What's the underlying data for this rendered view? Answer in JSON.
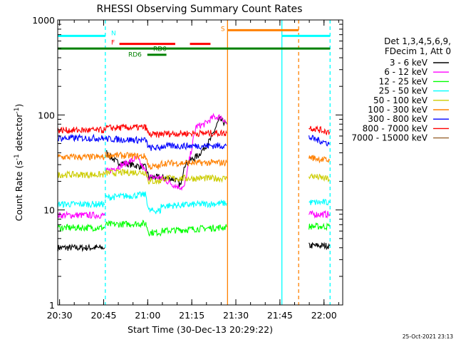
{
  "chart_data": {
    "type": "line",
    "title": "RHESSI Observing Summary Count Rates",
    "xlabel": "Start Time (30-Dec-13 20:29:22)",
    "ylabel_main": "Count Rate (s",
    "ylabel_sup1": "-1",
    "ylabel_mid": " detector",
    "ylabel_sup2": "-1",
    "ylabel_end": ")",
    "x_unit": "minutes since 20:29:22",
    "xlim": [
      0,
      97
    ],
    "ylim": [
      1,
      1000
    ],
    "yscale": "log",
    "x_ticks": [
      {
        "x": 0.63,
        "label": "20:30"
      },
      {
        "x": 15.63,
        "label": "20:45"
      },
      {
        "x": 30.63,
        "label": "21:00"
      },
      {
        "x": 45.63,
        "label": "21:15"
      },
      {
        "x": 60.63,
        "label": "21:30"
      },
      {
        "x": 75.63,
        "label": "21:45"
      },
      {
        "x": 90.63,
        "label": "22:00"
      }
    ],
    "y_ticks": [
      {
        "y": 1,
        "label": "1"
      },
      {
        "y": 10,
        "label": "10"
      },
      {
        "y": 100,
        "label": "100"
      },
      {
        "y": 1000,
        "label": "1000"
      }
    ],
    "legend_header": [
      "Det 1,3,4,5,6,9,",
      "FDecim 1, Att 0"
    ],
    "legend_placement": "right",
    "timestamp": "25-Oct-2021 23:13",
    "series": [
      {
        "name": "3 - 6 keV",
        "color": "#000000",
        "segments": [
          {
            "x": [
              0.1,
              16.0
            ],
            "y": [
              4.0,
              4.0
            ]
          },
          {
            "x": [
              16.5,
              20,
              25,
              30,
              31,
              35,
              40,
              42,
              43,
              48,
              52,
              55,
              57.5
            ],
            "y": [
              40,
              32,
              30,
              28,
              22,
              22,
              21,
              18,
              30,
              38,
              55,
              90,
              80
            ]
          },
          {
            "x": [
              85.5,
              92.5
            ],
            "y": [
              4.2,
              4.2
            ]
          }
        ]
      },
      {
        "name": "6 - 12 keV",
        "color": "#ff00ff",
        "segments": [
          {
            "x": [
              0.1,
              16.0
            ],
            "y": [
              8.8,
              8.8
            ]
          },
          {
            "x": [
              16.2,
              20,
              27,
              30,
              31,
              35,
              40,
              43,
              47,
              50,
              53,
              56,
              57.5
            ],
            "y": [
              25,
              28,
              35,
              25,
              22,
              22,
              18,
              17,
              75,
              80,
              95,
              95,
              80
            ]
          },
          {
            "x": [
              85.5,
              92.5
            ],
            "y": [
              9.0,
              9.0
            ]
          }
        ]
      },
      {
        "name": "12 - 25 keV",
        "color": "#00ff00",
        "segments": [
          {
            "x": [
              0.1,
              16.0
            ],
            "y": [
              6.5,
              6.5
            ]
          },
          {
            "x": [
              16.2,
              30,
              31,
              35,
              35.2,
              57.5
            ],
            "y": [
              7.0,
              7.2,
              5.8,
              5.8,
              6.0,
              6.6
            ]
          },
          {
            "x": [
              85.5,
              92.5
            ],
            "y": [
              6.7,
              6.7
            ]
          }
        ]
      },
      {
        "name": "25 - 50 keV",
        "color": "#00ffff",
        "segments": [
          {
            "x": [
              0.1,
              16.0
            ],
            "y": [
              11.5,
              11.5
            ]
          },
          {
            "x": [
              16.2,
              30,
              31,
              35,
              35.2,
              57.5
            ],
            "y": [
              13.5,
              14.5,
              9.8,
              9.8,
              11.0,
              11.8
            ]
          },
          {
            "x": [
              85.5,
              92.5
            ],
            "y": [
              12.0,
              12.0
            ]
          }
        ]
      },
      {
        "name": "50 - 100 keV",
        "color": "#cccc00",
        "segments": [
          {
            "x": [
              0.1,
              16.0
            ],
            "y": [
              23.5,
              23.5
            ]
          },
          {
            "x": [
              16.2,
              30,
              31,
              35,
              35.2,
              57.5
            ],
            "y": [
              24.5,
              25.0,
              20.0,
              20.0,
              21.5,
              21.5
            ]
          },
          {
            "x": [
              85.5,
              92.5
            ],
            "y": [
              23.0,
              21.0
            ]
          }
        ]
      },
      {
        "name": "100 - 300 keV",
        "color": "#ff8000",
        "segments": [
          {
            "x": [
              0.1,
              16.0
            ],
            "y": [
              36.0,
              36.0
            ]
          },
          {
            "x": [
              16.2,
              30,
              31,
              35,
              35.2,
              57.5
            ],
            "y": [
              38.0,
              36.5,
              28.5,
              28.5,
              31.0,
              31.5
            ]
          },
          {
            "x": [
              85.5,
              92.5
            ],
            "y": [
              36.0,
              33.0
            ]
          }
        ]
      },
      {
        "name": "300 - 800 keV",
        "color": "#0000ff",
        "segments": [
          {
            "x": [
              0.1,
              16.0
            ],
            "y": [
              57.0,
              57.0
            ]
          },
          {
            "x": [
              16.2,
              30,
              31,
              35,
              35.2,
              57.5
            ],
            "y": [
              56.0,
              54.0,
              45.0,
              45.0,
              47.0,
              47.5
            ]
          },
          {
            "x": [
              85.5,
              92.5
            ],
            "y": [
              58.0,
              50.0
            ]
          }
        ]
      },
      {
        "name": "800 - 7000 keV",
        "color": "#ff0000",
        "segments": [
          {
            "x": [
              0.1,
              16.0
            ],
            "y": [
              69.0,
              69.0
            ]
          },
          {
            "x": [
              16.2,
              30,
              31,
              35,
              35.2,
              57.5
            ],
            "y": [
              73.0,
              74.0,
              62.0,
              62.0,
              63.5,
              64.5
            ]
          },
          {
            "x": [
              85.5,
              92.5
            ],
            "y": [
              74.0,
              66.0
            ]
          }
        ]
      },
      {
        "name": "7000 - 15000 keV",
        "color": "#996633",
        "segments": []
      }
    ],
    "flags": [
      {
        "label": "N",
        "color": "#00ffff",
        "y": 680,
        "x": [
          0.1,
          16.2
        ],
        "label_x": 18.2,
        "label_y": 740
      },
      {
        "label": "N",
        "color": "#00ffff",
        "y": 680,
        "x": [
          76.3,
          92.7
        ],
        "label_x": null,
        "label_y": null
      },
      {
        "label": "F",
        "color": "#ff0000",
        "y": 560,
        "x": [
          21.0,
          40.0
        ],
        "label_x": 18.2,
        "label_y": 590
      },
      {
        "label": "F",
        "color": "#ff0000",
        "y": 560,
        "x": [
          45.0,
          52.0
        ],
        "label_x": null,
        "label_y": null
      },
      {
        "label": "S",
        "color": "#ff8000",
        "y": 780,
        "x": [
          57.8,
          82.0
        ],
        "label_x": 55.5,
        "label_y": 820
      },
      {
        "label": "RD0",
        "color": "#008000",
        "y": 500,
        "x": [
          0.1,
          92.7
        ],
        "label_x": 32.5,
        "label_y": 505
      },
      {
        "label": "RD6",
        "color": "#008000",
        "y": 430,
        "x": [
          30.5,
          37.0
        ],
        "label_x": 24.0,
        "label_y": 440
      }
    ],
    "vlines": [
      {
        "x": 16.2,
        "color": "#00ffff",
        "dashed": true
      },
      {
        "x": 57.8,
        "color": "#ff8000",
        "dashed": false
      },
      {
        "x": 76.3,
        "color": "#00ffff",
        "dashed": false
      },
      {
        "x": 82.0,
        "color": "#ff8000",
        "dashed": true
      },
      {
        "x": 92.7,
        "color": "#00ffff",
        "dashed": true
      }
    ]
  }
}
